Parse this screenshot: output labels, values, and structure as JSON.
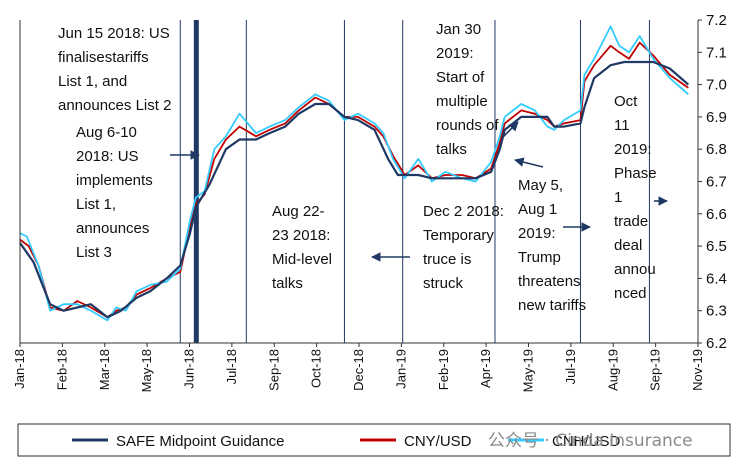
{
  "chart_data": {
    "type": "line",
    "title": "",
    "xlabel": "",
    "ylabel": "",
    "ylim": [
      6.2,
      7.2
    ],
    "yticks": [
      "7.2",
      "7.1",
      "7.0",
      "6.9",
      "6.8",
      "6.7",
      "6.6",
      "6.5",
      "6.4",
      "6.3",
      "6.2"
    ],
    "xticks": [
      "Jan-18",
      "Feb-18",
      "Mar-18",
      "May-18",
      "Jun-18",
      "Jul-18",
      "Sep-18",
      "Oct-18",
      "Dec-18",
      "Jan-19",
      "Feb-19",
      "Apr-19",
      "May-19",
      "Jul-19",
      "Aug-19",
      "Sep-19",
      "Nov-19"
    ],
    "x_start": "2018-01-01",
    "x_end": "2019-11-30",
    "legend_position": "bottom",
    "series": [
      {
        "name": "SAFE  Midpoint  Guidance",
        "color": "#1f3864",
        "style": "solid",
        "values": [
          [
            "2018-01-01",
            6.51
          ],
          [
            "2018-01-15",
            6.45
          ],
          [
            "2018-02-01",
            6.32
          ],
          [
            "2018-02-15",
            6.3
          ],
          [
            "2018-03-01",
            6.31
          ],
          [
            "2018-03-15",
            6.32
          ],
          [
            "2018-04-01",
            6.28
          ],
          [
            "2018-04-15",
            6.3
          ],
          [
            "2018-05-01",
            6.34
          ],
          [
            "2018-05-15",
            6.36
          ],
          [
            "2018-06-01",
            6.4
          ],
          [
            "2018-06-15",
            6.44
          ],
          [
            "2018-06-25",
            6.54
          ],
          [
            "2018-07-01",
            6.62
          ],
          [
            "2018-07-15",
            6.69
          ],
          [
            "2018-08-01",
            6.8
          ],
          [
            "2018-08-15",
            6.83
          ],
          [
            "2018-09-01",
            6.83
          ],
          [
            "2018-09-15",
            6.85
          ],
          [
            "2018-10-01",
            6.87
          ],
          [
            "2018-10-15",
            6.91
          ],
          [
            "2018-11-01",
            6.94
          ],
          [
            "2018-11-15",
            6.94
          ],
          [
            "2018-12-01",
            6.9
          ],
          [
            "2018-12-15",
            6.89
          ],
          [
            "2019-01-01",
            6.86
          ],
          [
            "2019-01-15",
            6.77
          ],
          [
            "2019-01-25",
            6.72
          ],
          [
            "2019-02-15",
            6.72
          ],
          [
            "2019-03-01",
            6.71
          ],
          [
            "2019-03-15",
            6.71
          ],
          [
            "2019-04-01",
            6.71
          ],
          [
            "2019-04-15",
            6.71
          ],
          [
            "2019-05-01",
            6.73
          ],
          [
            "2019-05-10",
            6.8
          ],
          [
            "2019-05-15",
            6.86
          ],
          [
            "2019-06-01",
            6.9
          ],
          [
            "2019-06-15",
            6.9
          ],
          [
            "2019-06-28",
            6.9
          ],
          [
            "2019-07-05",
            6.87
          ],
          [
            "2019-07-15",
            6.87
          ],
          [
            "2019-08-01",
            6.88
          ],
          [
            "2019-08-05",
            6.93
          ],
          [
            "2019-08-15",
            7.02
          ],
          [
            "2019-09-01",
            7.06
          ],
          [
            "2019-09-15",
            7.07
          ],
          [
            "2019-10-01",
            7.07
          ],
          [
            "2019-10-15",
            7.07
          ],
          [
            "2019-11-01",
            7.05
          ],
          [
            "2019-11-20",
            7.0
          ]
        ]
      },
      {
        "name": "CNY/USD",
        "color": "#c00000",
        "style": "solid",
        "values": [
          [
            "2018-01-01",
            6.52
          ],
          [
            "2018-01-10",
            6.5
          ],
          [
            "2018-01-20",
            6.44
          ],
          [
            "2018-02-01",
            6.31
          ],
          [
            "2018-02-15",
            6.3
          ],
          [
            "2018-03-01",
            6.33
          ],
          [
            "2018-03-15",
            6.31
          ],
          [
            "2018-04-01",
            6.28
          ],
          [
            "2018-04-10",
            6.3
          ],
          [
            "2018-04-20",
            6.31
          ],
          [
            "2018-05-01",
            6.35
          ],
          [
            "2018-05-15",
            6.37
          ],
          [
            "2018-06-01",
            6.4
          ],
          [
            "2018-06-15",
            6.42
          ],
          [
            "2018-06-25",
            6.56
          ],
          [
            "2018-07-01",
            6.63
          ],
          [
            "2018-07-10",
            6.66
          ],
          [
            "2018-07-20",
            6.77
          ],
          [
            "2018-08-01",
            6.83
          ],
          [
            "2018-08-15",
            6.87
          ],
          [
            "2018-09-01",
            6.84
          ],
          [
            "2018-09-15",
            6.86
          ],
          [
            "2018-10-01",
            6.88
          ],
          [
            "2018-10-15",
            6.92
          ],
          [
            "2018-11-01",
            6.96
          ],
          [
            "2018-11-15",
            6.94
          ],
          [
            "2018-12-01",
            6.9
          ],
          [
            "2018-12-15",
            6.9
          ],
          [
            "2019-01-01",
            6.87
          ],
          [
            "2019-01-10",
            6.84
          ],
          [
            "2019-01-20",
            6.78
          ],
          [
            "2019-02-01",
            6.72
          ],
          [
            "2019-02-15",
            6.75
          ],
          [
            "2019-03-01",
            6.71
          ],
          [
            "2019-03-15",
            6.72
          ],
          [
            "2019-04-01",
            6.72
          ],
          [
            "2019-04-15",
            6.71
          ],
          [
            "2019-05-01",
            6.74
          ],
          [
            "2019-05-10",
            6.82
          ],
          [
            "2019-05-15",
            6.88
          ],
          [
            "2019-06-01",
            6.92
          ],
          [
            "2019-06-15",
            6.91
          ],
          [
            "2019-06-28",
            6.89
          ],
          [
            "2019-07-05",
            6.87
          ],
          [
            "2019-07-15",
            6.88
          ],
          [
            "2019-08-01",
            6.89
          ],
          [
            "2019-08-05",
            7.01
          ],
          [
            "2019-08-15",
            7.06
          ],
          [
            "2019-09-01",
            7.12
          ],
          [
            "2019-09-10",
            7.1
          ],
          [
            "2019-09-20",
            7.08
          ],
          [
            "2019-10-01",
            7.13
          ],
          [
            "2019-10-15",
            7.09
          ],
          [
            "2019-11-01",
            7.03
          ],
          [
            "2019-11-20",
            6.99
          ]
        ]
      },
      {
        "name": "CNH/USD",
        "color": "#33ccff",
        "style": "solid",
        "values": [
          [
            "2018-01-01",
            6.54
          ],
          [
            "2018-01-08",
            6.53
          ],
          [
            "2018-01-20",
            6.44
          ],
          [
            "2018-02-01",
            6.3
          ],
          [
            "2018-02-15",
            6.32
          ],
          [
            "2018-03-01",
            6.32
          ],
          [
            "2018-03-15",
            6.3
          ],
          [
            "2018-04-01",
            6.27
          ],
          [
            "2018-04-10",
            6.31
          ],
          [
            "2018-04-20",
            6.3
          ],
          [
            "2018-05-01",
            6.36
          ],
          [
            "2018-05-15",
            6.38
          ],
          [
            "2018-06-01",
            6.39
          ],
          [
            "2018-06-15",
            6.43
          ],
          [
            "2018-06-25",
            6.58
          ],
          [
            "2018-07-01",
            6.65
          ],
          [
            "2018-07-10",
            6.67
          ],
          [
            "2018-07-20",
            6.8
          ],
          [
            "2018-08-01",
            6.84
          ],
          [
            "2018-08-15",
            6.91
          ],
          [
            "2018-09-01",
            6.85
          ],
          [
            "2018-09-15",
            6.87
          ],
          [
            "2018-10-01",
            6.89
          ],
          [
            "2018-10-15",
            6.93
          ],
          [
            "2018-11-01",
            6.97
          ],
          [
            "2018-11-15",
            6.95
          ],
          [
            "2018-12-01",
            6.89
          ],
          [
            "2018-12-15",
            6.91
          ],
          [
            "2019-01-01",
            6.88
          ],
          [
            "2019-01-10",
            6.85
          ],
          [
            "2019-01-20",
            6.77
          ],
          [
            "2019-02-01",
            6.71
          ],
          [
            "2019-02-15",
            6.77
          ],
          [
            "2019-03-01",
            6.7
          ],
          [
            "2019-03-15",
            6.73
          ],
          [
            "2019-04-01",
            6.71
          ],
          [
            "2019-04-15",
            6.7
          ],
          [
            "2019-05-01",
            6.76
          ],
          [
            "2019-05-10",
            6.84
          ],
          [
            "2019-05-15",
            6.9
          ],
          [
            "2019-06-01",
            6.94
          ],
          [
            "2019-06-15",
            6.92
          ],
          [
            "2019-06-28",
            6.87
          ],
          [
            "2019-07-05",
            6.86
          ],
          [
            "2019-07-15",
            6.89
          ],
          [
            "2019-08-01",
            6.92
          ],
          [
            "2019-08-05",
            7.03
          ],
          [
            "2019-08-15",
            7.08
          ],
          [
            "2019-09-01",
            7.18
          ],
          [
            "2019-09-10",
            7.12
          ],
          [
            "2019-09-20",
            7.1
          ],
          [
            "2019-10-01",
            7.15
          ],
          [
            "2019-10-15",
            7.08
          ],
          [
            "2019-11-01",
            7.02
          ],
          [
            "2019-11-20",
            6.97
          ]
        ]
      }
    ],
    "event_lines": [
      "2018-06-15",
      "2018-07-01",
      "2018-08-22",
      "2018-12-01",
      "2019-01-30",
      "2019-05-05",
      "2019-08-01",
      "2019-10-11"
    ],
    "annotations": {
      "jun15": [
        "Jun 15 2018: US",
        "finalisestariffs",
        "List 1, and",
        "announces List 2"
      ],
      "aug610": [
        "Aug 6-10",
        "2018: US",
        "implements",
        "List 1,",
        "announces",
        "List 3"
      ],
      "aug2223": [
        "Aug 22-",
        "23 2018:",
        "Mid-level",
        "talks"
      ],
      "jan30": [
        "Jan 30",
        "2019:",
        "Start of",
        "multiple",
        "rounds of",
        "talks"
      ],
      "dec2": [
        "Dec 2 2018:",
        "Temporary",
        "truce is",
        "struck"
      ],
      "may5": [
        "May 5,",
        "Aug 1",
        "2019:",
        "Trump",
        "threatens",
        "new tariffs"
      ],
      "oct11": [
        "Oct",
        "11",
        "2019:",
        "Phase",
        "1",
        "trade",
        "deal",
        "annou",
        "nced"
      ]
    },
    "legend": [
      "SAFE  Midpoint  Guidance",
      "CNY/USD",
      "CNH/USD"
    ]
  },
  "watermark": "公众号 · Cinda Insurance"
}
